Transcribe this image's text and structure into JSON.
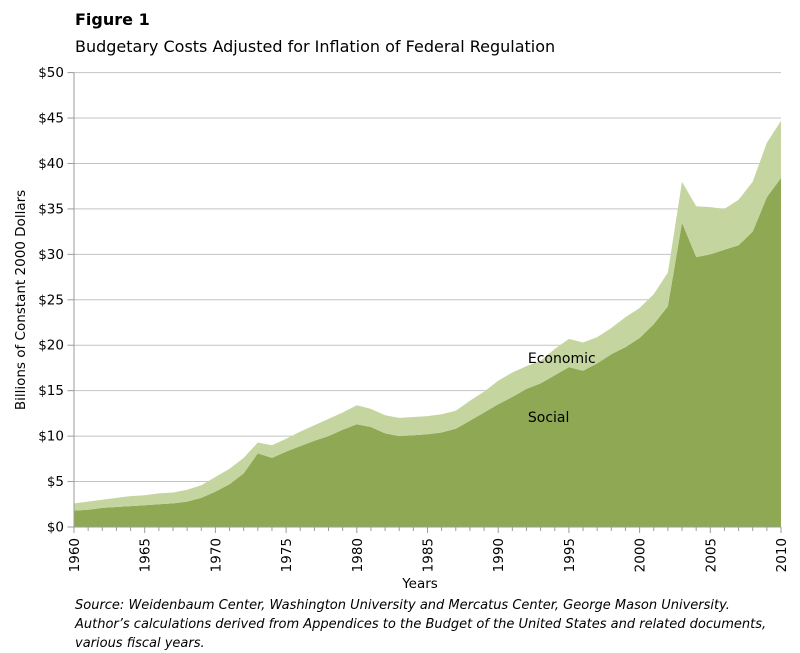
{
  "figure": {
    "label": "Figure 1",
    "title": "Budgetary Costs Adjusted for Inflation of Federal Regulation"
  },
  "source_note": {
    "line1": "Source: Weidenbaum Center, Washington University and Mercatus Center, George Mason University.",
    "line2": "Author’s calculations derived from Appendices to the Budget of the United States and related documents,",
    "line3": "various fiscal years."
  },
  "chart_data": {
    "type": "area",
    "stacked": true,
    "title": "Budgetary Costs Adjusted for Inflation of Federal Regulation",
    "x_label": "Years",
    "y_label": "Billions of Constant 2000 Dollars",
    "ylim": [
      0,
      50
    ],
    "y_ticks": [
      0,
      5,
      10,
      15,
      20,
      25,
      30,
      35,
      40,
      45,
      50
    ],
    "y_tick_prefix": "$",
    "x_major_ticks": [
      1960,
      1965,
      1970,
      1975,
      1980,
      1985,
      1990,
      1995,
      2000,
      2005,
      2010
    ],
    "grid": "horizontal",
    "x": [
      1960,
      1961,
      1962,
      1963,
      1964,
      1965,
      1966,
      1967,
      1968,
      1969,
      1970,
      1971,
      1972,
      1973,
      1974,
      1975,
      1976,
      1977,
      1978,
      1979,
      1980,
      1981,
      1982,
      1983,
      1984,
      1985,
      1986,
      1987,
      1988,
      1989,
      1990,
      1991,
      1992,
      1993,
      1994,
      1995,
      1996,
      1997,
      1998,
      1999,
      2000,
      2001,
      2002,
      2003,
      2004,
      2005,
      2006,
      2007,
      2008,
      2009,
      2010
    ],
    "series": [
      {
        "name": "Social",
        "color": "#8ea853",
        "values": [
          1.8,
          1.9,
          2.1,
          2.2,
          2.3,
          2.4,
          2.5,
          2.6,
          2.8,
          3.2,
          3.9,
          4.7,
          5.9,
          8.1,
          7.6,
          8.3,
          8.9,
          9.5,
          10.0,
          10.7,
          11.3,
          11.0,
          10.3,
          10.0,
          10.1,
          10.2,
          10.4,
          10.8,
          11.7,
          12.6,
          13.5,
          14.3,
          15.2,
          15.8,
          16.7,
          17.6,
          17.2,
          18.0,
          19.0,
          19.8,
          20.8,
          22.3,
          24.3,
          33.5,
          29.7,
          30.0,
          30.5,
          31.0,
          32.5,
          36.3,
          38.4
        ]
      },
      {
        "name": "Economic",
        "color": "#c5d5a0",
        "values": [
          0.8,
          0.9,
          0.9,
          1.0,
          1.1,
          1.1,
          1.2,
          1.2,
          1.3,
          1.4,
          1.6,
          1.7,
          1.7,
          1.2,
          1.4,
          1.4,
          1.6,
          1.7,
          1.9,
          1.9,
          2.1,
          2.0,
          2.0,
          2.0,
          2.0,
          2.0,
          2.0,
          2.0,
          2.2,
          2.3,
          2.6,
          2.7,
          2.5,
          2.5,
          2.9,
          3.1,
          3.1,
          2.9,
          2.9,
          3.3,
          3.3,
          3.3,
          3.7,
          4.5,
          5.6,
          5.2,
          4.5,
          5.0,
          5.5,
          6.0,
          6.3
        ]
      }
    ],
    "series_labels": [
      {
        "text": "Economic",
        "year": 1992.1,
        "value": 18.05,
        "color": "#262626"
      },
      {
        "text": "Social",
        "year": 1992.1,
        "value": 11.55,
        "color": "#ebf0de"
      }
    ],
    "colors": {
      "social_area": "#8ea853",
      "economic_area": "#c5d5a0",
      "gridline": "#c3c3c3",
      "axis": "#9b9b9b",
      "text": "#000000"
    }
  }
}
